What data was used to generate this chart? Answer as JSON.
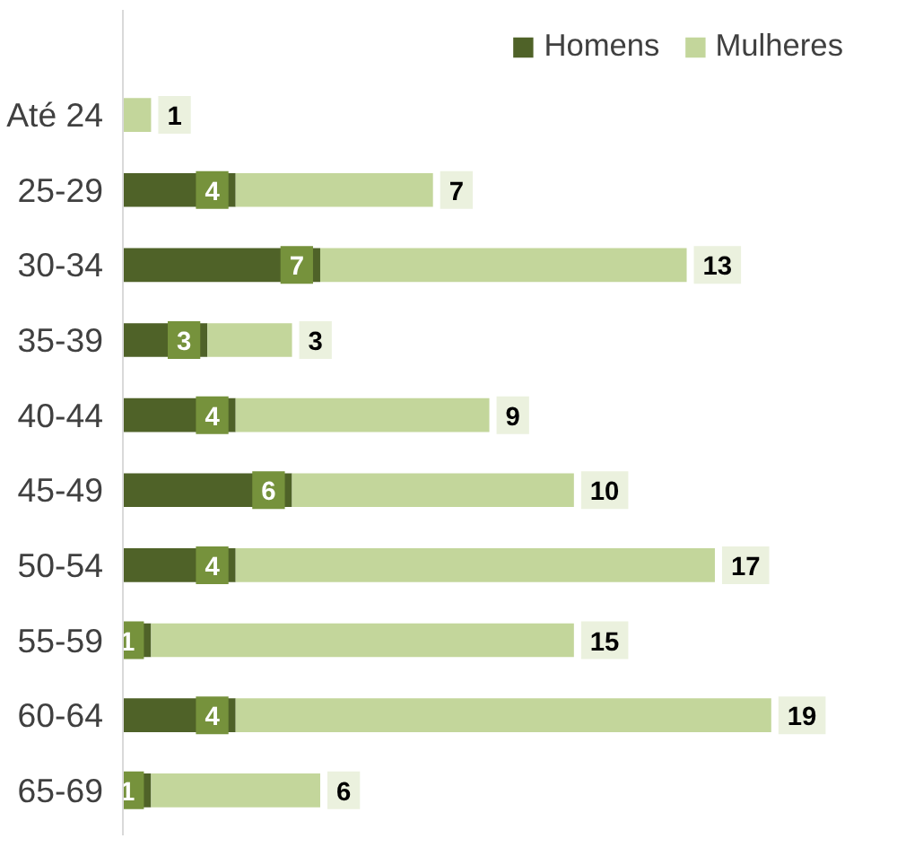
{
  "chart_data": {
    "type": "bar",
    "orientation": "horizontal",
    "stacked": true,
    "data_labels": true,
    "legend": "top right",
    "grid": false,
    "categories": [
      "Até 24",
      "25-29",
      "30-34",
      "35-39",
      "40-44",
      "45-49",
      "50-54",
      "55-59",
      "60-64",
      "65-69"
    ],
    "series": [
      {
        "name": "Homens",
        "color": "#4f6228",
        "values": [
          null,
          4,
          7,
          3,
          4,
          6,
          4,
          1,
          4,
          1
        ]
      },
      {
        "name": "Mulheres",
        "color": "#c3d69b",
        "values": [
          1,
          7,
          13,
          3,
          9,
          10,
          17,
          15,
          19,
          6
        ]
      }
    ]
  }
}
